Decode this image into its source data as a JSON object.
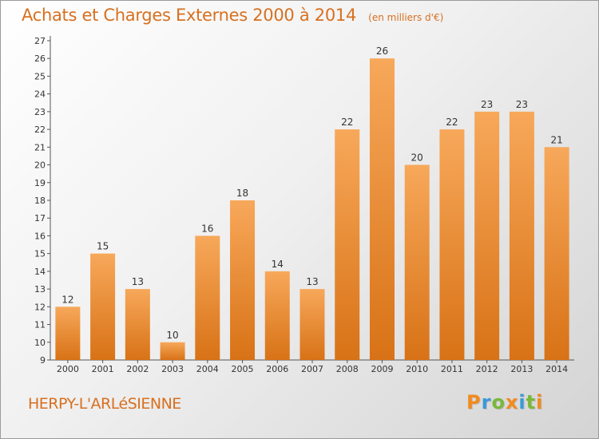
{
  "header": {
    "title": "Achats et Charges Externes 2000 à 2014",
    "unit": "(en milliers d'€)"
  },
  "footer": {
    "commune": "HERPY-L'ARLéSIENNE",
    "brand": [
      "P",
      "r",
      "o",
      "x",
      "i",
      "t",
      "i"
    ],
    "brand_colors": [
      "#f28a1e",
      "#3a9ad9",
      "#7ab83a",
      "#f28a1e",
      "#3a9ad9",
      "#7ab83a",
      "#f28a1e"
    ]
  },
  "colors": {
    "bar_light": "#f7a85a",
    "bar_dark": "#d87216",
    "title": "#d8701f"
  },
  "chart_data": {
    "type": "bar",
    "categories": [
      "2000",
      "2001",
      "2002",
      "2003",
      "2004",
      "2005",
      "2006",
      "2007",
      "2008",
      "2009",
      "2010",
      "2011",
      "2012",
      "2013",
      "2014"
    ],
    "values": [
      12,
      15,
      13,
      10,
      16,
      18,
      14,
      13,
      22,
      26,
      20,
      22,
      23,
      23,
      21
    ],
    "ylim": [
      9,
      27
    ],
    "yticks": [
      9,
      10,
      11,
      12,
      13,
      14,
      15,
      16,
      17,
      18,
      19,
      20,
      21,
      22,
      23,
      24,
      25,
      26,
      27
    ],
    "grid": false
  }
}
